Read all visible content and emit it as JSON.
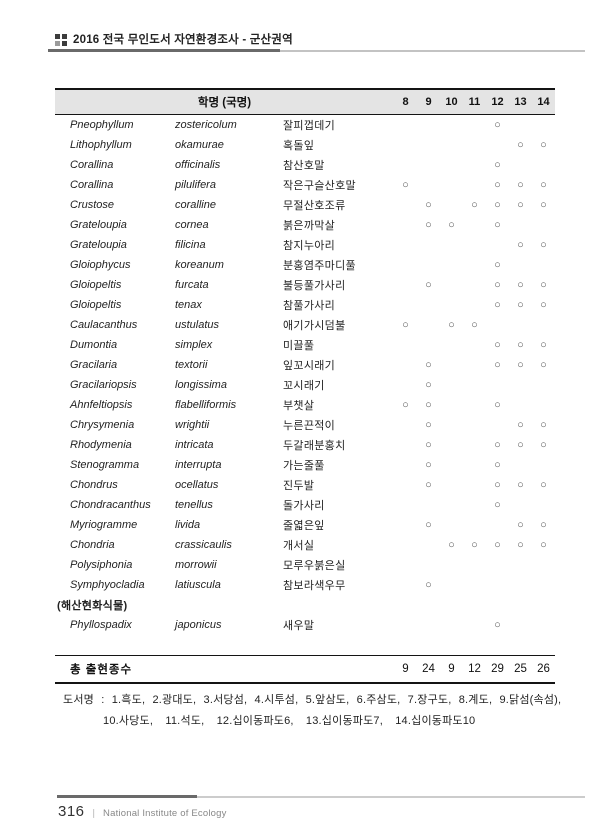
{
  "header": {
    "title": "2016 전국 무인도서 자연환경조사 - 군산권역"
  },
  "table": {
    "name_header": "학명 (국명)",
    "columns": [
      "8",
      "9",
      "10",
      "11",
      "12",
      "13",
      "14"
    ],
    "mark_symbol": "○",
    "rows": [
      {
        "genus": "Pneophyllum",
        "species": "zostericolum",
        "korean": "잘피껍데기",
        "marks": [
          0,
          0,
          0,
          0,
          1,
          0,
          0
        ]
      },
      {
        "genus": "Lithophyllum",
        "species": "okamurae",
        "korean": "혹돌잎",
        "marks": [
          0,
          0,
          0,
          0,
          0,
          1,
          1
        ]
      },
      {
        "genus": "Corallina",
        "species": "officinalis",
        "korean": "참산호말",
        "marks": [
          0,
          0,
          0,
          0,
          1,
          0,
          0
        ]
      },
      {
        "genus": "Corallina",
        "species": "pilulifera",
        "korean": "작은구슬산호말",
        "marks": [
          1,
          0,
          0,
          0,
          1,
          1,
          1
        ]
      },
      {
        "genus": "Crustose",
        "species": "coralline",
        "korean": "무절산호조류",
        "marks": [
          0,
          1,
          0,
          1,
          1,
          1,
          1
        ]
      },
      {
        "genus": "Grateloupia",
        "species": "cornea",
        "korean": "붉은까막살",
        "marks": [
          0,
          1,
          1,
          0,
          1,
          0,
          0
        ]
      },
      {
        "genus": "Grateloupia",
        "species": "filicina",
        "korean": "참지누아리",
        "marks": [
          0,
          0,
          0,
          0,
          0,
          1,
          1
        ]
      },
      {
        "genus": "Gloiophycus",
        "species": "koreanum",
        "korean": "분홍염주마디풀",
        "marks": [
          0,
          0,
          0,
          0,
          1,
          0,
          0
        ]
      },
      {
        "genus": "Gloiopeltis",
        "species": "furcata",
        "korean": "불등풀가사리",
        "marks": [
          0,
          1,
          0,
          0,
          1,
          1,
          1
        ]
      },
      {
        "genus": "Gloiopeltis",
        "species": "tenax",
        "korean": "참풀가사리",
        "marks": [
          0,
          0,
          0,
          0,
          1,
          1,
          1
        ]
      },
      {
        "genus": "Caulacanthus",
        "species": "ustulatus",
        "korean": "애기가시덤불",
        "marks": [
          1,
          0,
          1,
          1,
          0,
          0,
          0
        ]
      },
      {
        "genus": "Dumontia",
        "species": "simplex",
        "korean": "미끌풀",
        "marks": [
          0,
          0,
          0,
          0,
          1,
          1,
          1
        ]
      },
      {
        "genus": "Gracilaria",
        "species": "textorii",
        "korean": "잎꼬시래기",
        "marks": [
          0,
          1,
          0,
          0,
          1,
          1,
          1
        ]
      },
      {
        "genus": "Gracilariopsis",
        "species": "longissima",
        "korean": "꼬시래기",
        "marks": [
          0,
          1,
          0,
          0,
          0,
          0,
          0
        ]
      },
      {
        "genus": "Ahnfeltiopsis",
        "species": "flabelliformis",
        "korean": "부챗살",
        "marks": [
          1,
          1,
          0,
          0,
          1,
          0,
          0
        ]
      },
      {
        "genus": "Chrysymenia",
        "species": "wrightii",
        "korean": "누른끈적이",
        "marks": [
          0,
          1,
          0,
          0,
          0,
          1,
          1
        ]
      },
      {
        "genus": "Rhodymenia",
        "species": "intricata",
        "korean": "두갈래분홍치",
        "marks": [
          0,
          1,
          0,
          0,
          1,
          1,
          1
        ]
      },
      {
        "genus": "Stenogramma",
        "species": "interrupta",
        "korean": "가는줄풀",
        "marks": [
          0,
          1,
          0,
          0,
          1,
          0,
          0
        ]
      },
      {
        "genus": "Chondrus",
        "species": "ocellatus",
        "korean": "진두발",
        "marks": [
          0,
          1,
          0,
          0,
          1,
          1,
          1
        ]
      },
      {
        "genus": "Chondracanthus",
        "species": "tenellus",
        "korean": "돌가사리",
        "marks": [
          0,
          0,
          0,
          0,
          1,
          0,
          0
        ]
      },
      {
        "genus": "Myriogramme",
        "species": "livida",
        "korean": "줄엷은잎",
        "marks": [
          0,
          1,
          0,
          0,
          0,
          1,
          1
        ]
      },
      {
        "genus": "Chondria",
        "species": "crassicaulis",
        "korean": "개서실",
        "marks": [
          0,
          0,
          1,
          1,
          1,
          1,
          1
        ]
      },
      {
        "genus": "Polysiphonia",
        "species": "morrowii",
        "korean": "모루우붉은실",
        "marks": [
          0,
          0,
          0,
          0,
          0,
          0,
          0
        ]
      },
      {
        "genus": "Symphyocladia",
        "species": "latiuscula",
        "korean": "참보라색우무",
        "marks": [
          0,
          1,
          0,
          0,
          0,
          0,
          0
        ]
      },
      {
        "section": "(해산현화식물)"
      },
      {
        "genus": "Phyllospadix",
        "species": "japonicus",
        "korean": "새우말",
        "marks": [
          0,
          0,
          0,
          0,
          1,
          0,
          0
        ]
      }
    ],
    "totals": {
      "label": "총 출현종수",
      "values": [
        "9",
        "24",
        "9",
        "12",
        "29",
        "25",
        "26"
      ]
    }
  },
  "footnote": {
    "line1": "도서명 : 1.흑도, 2.광대도, 3.서당섬, 4.시투섬, 5.앞삼도, 6.주삼도, 7.장구도, 8.계도, 9.닭섬(속섬),",
    "line2": "10.사당도, 11.석도, 12.십이동파도6, 13.십이동파도7, 14.십이동파도10"
  },
  "footer": {
    "page_number": "316",
    "institute": "National Institute of Ecology"
  },
  "colors": {
    "band": "#e4e4e4",
    "rule": "#141414",
    "accent": "#6a6a6a",
    "circle": "#555555"
  }
}
